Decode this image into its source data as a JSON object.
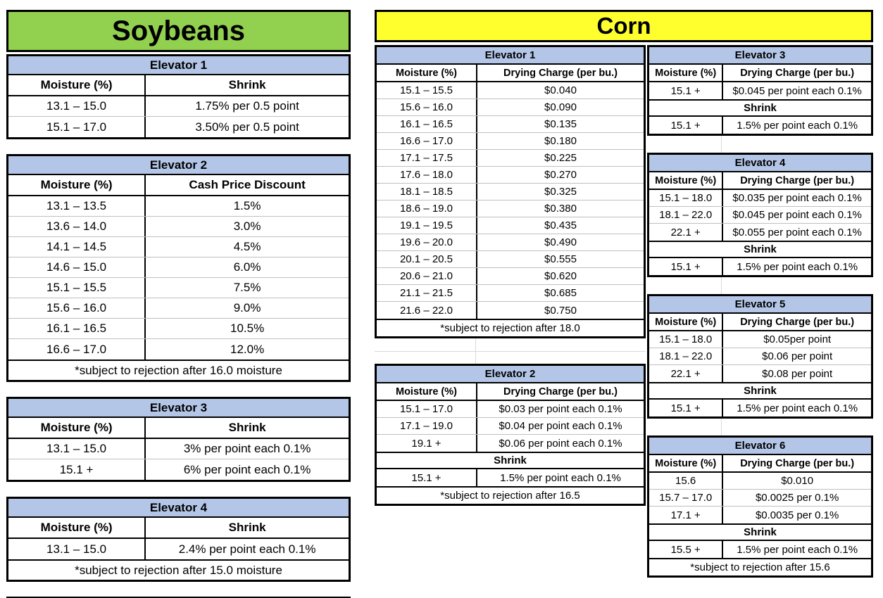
{
  "colors": {
    "soybeans_header": "#92D050",
    "corn_header": "#FFFF2E",
    "elevator_band": "#B4C6E7",
    "row_separator": "#BFBFBF",
    "gridline": "#D9D9D9"
  },
  "soybeans": {
    "title": "Soybeans",
    "tables": [
      {
        "title": "Elevator 1",
        "columns": [
          "Moisture (%)",
          "Shrink"
        ],
        "rows": [
          [
            "13.1 – 15.0",
            "1.75% per 0.5 point"
          ],
          [
            "15.1 – 17.0",
            "3.50% per 0.5 point"
          ]
        ]
      },
      {
        "title": "Elevator 2",
        "columns": [
          "Moisture (%)",
          "Cash Price Discount"
        ],
        "rows": [
          [
            "13.1 – 13.5",
            "1.5%"
          ],
          [
            "13.6 – 14.0",
            "3.0%"
          ],
          [
            "14.1 – 14.5",
            "4.5%"
          ],
          [
            "14.6 – 15.0",
            "6.0%"
          ],
          [
            "15.1 – 15.5",
            "7.5%"
          ],
          [
            "15.6 – 16.0",
            "9.0%"
          ],
          [
            "16.1 – 16.5",
            "10.5%"
          ],
          [
            "16.6 – 17.0",
            "12.0%"
          ]
        ],
        "footer": "*subject to rejection after 16.0 moisture"
      },
      {
        "title": "Elevator 3",
        "columns": [
          "Moisture (%)",
          "Shrink"
        ],
        "rows": [
          [
            "13.1 – 15.0",
            "3% per point each 0.1%"
          ],
          [
            "15.1 +",
            "6% per point each 0.1%"
          ]
        ]
      },
      {
        "title": "Elevator 4",
        "columns": [
          "Moisture (%)",
          "Shrink"
        ],
        "rows": [
          [
            "13.1 – 15.0",
            "2.4% per point each 0.1%"
          ]
        ],
        "footer": "*subject to rejection after 15.0 moisture"
      }
    ]
  },
  "corn": {
    "title": "Corn",
    "middle_tables": [
      {
        "title": "Elevator 1",
        "columns": [
          "Moisture (%)",
          "Drying Charge (per bu.)"
        ],
        "rows": [
          [
            "15.1 – 15.5",
            "$0.040"
          ],
          [
            "15.6 – 16.0",
            "$0.090"
          ],
          [
            "16.1 – 16.5",
            "$0.135"
          ],
          [
            "16.6 – 17.0",
            "$0.180"
          ],
          [
            "17.1 – 17.5",
            "$0.225"
          ],
          [
            "17.6 – 18.0",
            "$0.270"
          ],
          [
            "18.1 – 18.5",
            "$0.325"
          ],
          [
            "18.6 – 19.0",
            "$0.380"
          ],
          [
            "19.1 – 19.5",
            "$0.435"
          ],
          [
            "19.6 – 20.0",
            "$0.490"
          ],
          [
            "20.1 – 20.5",
            "$0.555"
          ],
          [
            "20.6 – 21.0",
            "$0.620"
          ],
          [
            "21.1 – 21.5",
            "$0.685"
          ],
          [
            "21.6 – 22.0",
            "$0.750"
          ]
        ],
        "footer": "*subject to rejection after 18.0"
      },
      {
        "title": "Elevator 2",
        "columns": [
          "Moisture (%)",
          "Drying Charge (per bu.)"
        ],
        "rows": [
          [
            "15.1 – 17.0",
            "$0.03 per point each 0.1%"
          ],
          [
            "17.1 – 19.0",
            "$0.04 per point each 0.1%"
          ],
          [
            "19.1 +",
            "$0.06 per point each 0.1%"
          ]
        ],
        "shrink": {
          "label": "Shrink",
          "rows": [
            [
              "15.1 +",
              "1.5% per point each 0.1%"
            ]
          ]
        },
        "footer": "*subject to rejection after 16.5"
      }
    ],
    "right_tables": [
      {
        "title": "Elevator 3",
        "columns": [
          "Moisture (%)",
          "Drying Charge (per bu.)"
        ],
        "rows": [
          [
            "15.1 +",
            "$0.045 per point each 0.1%"
          ]
        ],
        "shrink": {
          "label": "Shrink",
          "rows": [
            [
              "15.1 +",
              "1.5% per point each 0.1%"
            ]
          ]
        }
      },
      {
        "title": "Elevator 4",
        "columns": [
          "Moisture (%)",
          "Drying Charge (per bu.)"
        ],
        "rows": [
          [
            "15.1 – 18.0",
            "$0.035 per point each 0.1%"
          ],
          [
            "18.1 – 22.0",
            "$0.045 per point each 0.1%"
          ],
          [
            "22.1 +",
            "$0.055 per point each 0.1%"
          ]
        ],
        "shrink": {
          "label": "Shrink",
          "rows": [
            [
              "15.1 +",
              "1.5% per point each 0.1%"
            ]
          ]
        }
      },
      {
        "title": "Elevator 5",
        "columns": [
          "Moisture (%)",
          "Drying Charge (per bu.)"
        ],
        "rows": [
          [
            "15.1 – 18.0",
            "$0.05per point"
          ],
          [
            "18.1 – 22.0",
            "$0.06 per point"
          ],
          [
            "22.1 +",
            "$0.08 per point"
          ]
        ],
        "shrink": {
          "label": "Shrink",
          "rows": [
            [
              "15.1 +",
              "1.5% per point each 0.1%"
            ]
          ]
        }
      },
      {
        "title": "Elevator 6",
        "columns": [
          "Moisture (%)",
          "Drying Charge (per bu.)"
        ],
        "rows": [
          [
            "15.6",
            "$0.010"
          ],
          [
            "15.7 – 17.0",
            "$0.0025 per 0.1%"
          ],
          [
            "17.1 +",
            "$0.0035 per 0.1%"
          ]
        ],
        "shrink": {
          "label": "Shrink",
          "rows": [
            [
              "15.5 +",
              "1.5% per point each 0.1%"
            ]
          ]
        },
        "footer": "*subject to rejection after 15.6"
      }
    ]
  }
}
